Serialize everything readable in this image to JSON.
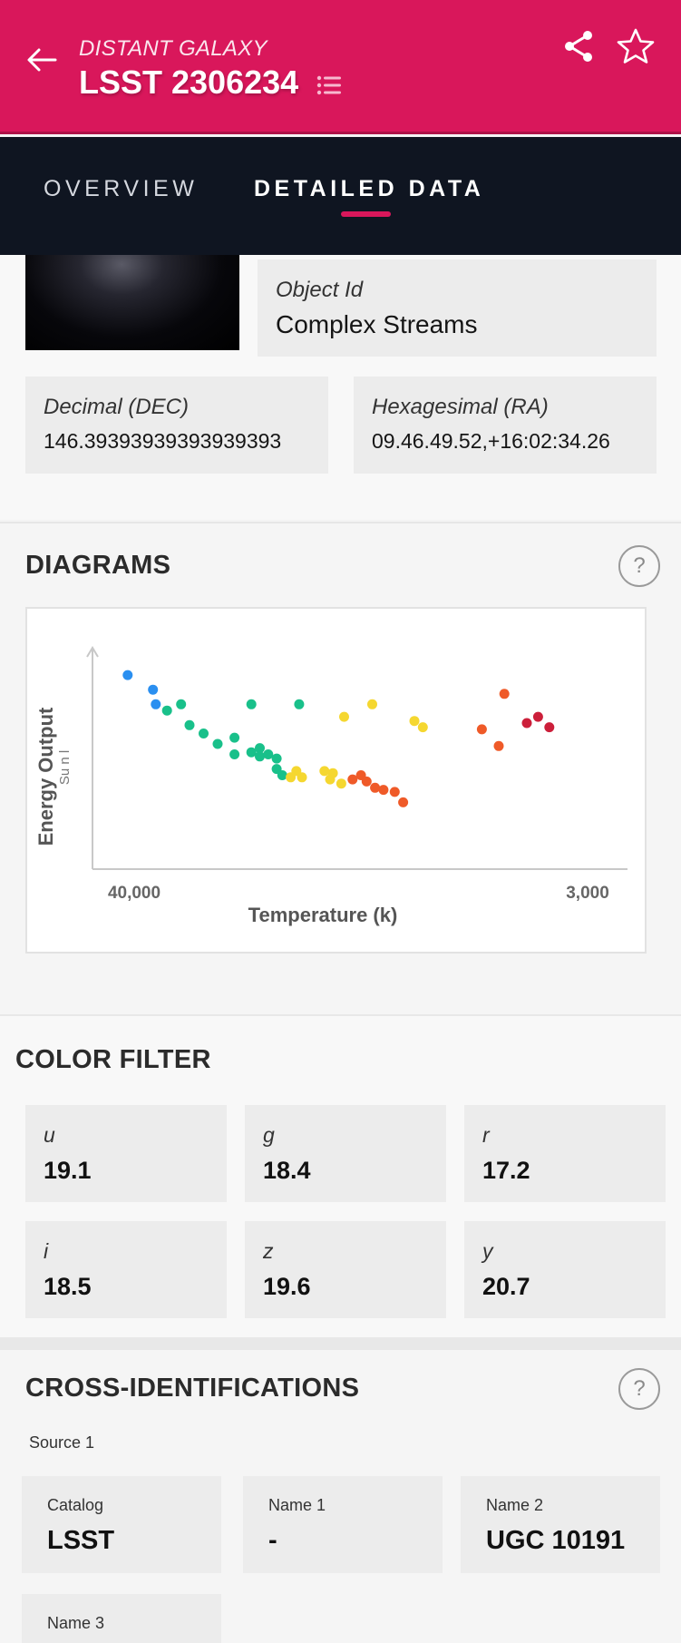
{
  "header": {
    "subtitle": "DISTANT GALAXY",
    "title": "LSST 2306234"
  },
  "tabs": [
    {
      "label": "OVERVIEW",
      "active": false
    },
    {
      "label": "DETAILED DATA",
      "active": true
    }
  ],
  "object": {
    "object_id_label": "Object Id",
    "object_id_value": "Complex Streams",
    "dec_label": "Decimal (DEC)",
    "dec_value": "146.39393939393939393",
    "ra_label": "Hexagesimal (RA)",
    "ra_value": "09.46.49.52,+16:02:34.26"
  },
  "diagrams": {
    "title": "DIAGRAMS",
    "help": "?"
  },
  "chart_data": {
    "type": "scatter",
    "xlabel": "Temperature (k)",
    "ylabel": "Energy Output",
    "ylabel_secondary": "Su n l",
    "x_tick_left": "40,000",
    "x_tick_right": "3,000",
    "xlim": [
      0,
      100
    ],
    "ylim": [
      0,
      100
    ],
    "points": [
      {
        "x": 4,
        "y": 93,
        "color": "#2a8ff0"
      },
      {
        "x": 8.5,
        "y": 86,
        "color": "#2a8ff0"
      },
      {
        "x": 9,
        "y": 79,
        "color": "#2a8ff0"
      },
      {
        "x": 11,
        "y": 76,
        "color": "#19c08a"
      },
      {
        "x": 13.5,
        "y": 79,
        "color": "#19c08a"
      },
      {
        "x": 15,
        "y": 69,
        "color": "#19c08a"
      },
      {
        "x": 17.5,
        "y": 65,
        "color": "#19c08a"
      },
      {
        "x": 20,
        "y": 60,
        "color": "#19c08a"
      },
      {
        "x": 23,
        "y": 63,
        "color": "#19c08a"
      },
      {
        "x": 23,
        "y": 55,
        "color": "#19c08a"
      },
      {
        "x": 26,
        "y": 56,
        "color": "#19c08a"
      },
      {
        "x": 27.5,
        "y": 54,
        "color": "#19c08a"
      },
      {
        "x": 27.5,
        "y": 58,
        "color": "#19c08a"
      },
      {
        "x": 29,
        "y": 55,
        "color": "#19c08a"
      },
      {
        "x": 30.5,
        "y": 53,
        "color": "#19c08a"
      },
      {
        "x": 30.5,
        "y": 48,
        "color": "#19c08a"
      },
      {
        "x": 31.5,
        "y": 45,
        "color": "#19c08a"
      },
      {
        "x": 26,
        "y": 79,
        "color": "#19c08a"
      },
      {
        "x": 34.5,
        "y": 79,
        "color": "#19c08a"
      },
      {
        "x": 33,
        "y": 44,
        "color": "#f5d730"
      },
      {
        "x": 34,
        "y": 47,
        "color": "#f5d730"
      },
      {
        "x": 35,
        "y": 44,
        "color": "#f5d730"
      },
      {
        "x": 39,
        "y": 47,
        "color": "#f5d730"
      },
      {
        "x": 40,
        "y": 43,
        "color": "#f5d730"
      },
      {
        "x": 40.5,
        "y": 46,
        "color": "#f5d730"
      },
      {
        "x": 42,
        "y": 41,
        "color": "#f5d730"
      },
      {
        "x": 42.5,
        "y": 73,
        "color": "#f5d730"
      },
      {
        "x": 47.5,
        "y": 79,
        "color": "#f5d730"
      },
      {
        "x": 55,
        "y": 71,
        "color": "#f5d730"
      },
      {
        "x": 56.5,
        "y": 68,
        "color": "#f5d730"
      },
      {
        "x": 44,
        "y": 43,
        "color": "#ef5a28"
      },
      {
        "x": 45.5,
        "y": 45,
        "color": "#ef5a28"
      },
      {
        "x": 46.5,
        "y": 42,
        "color": "#ef5a28"
      },
      {
        "x": 48,
        "y": 39,
        "color": "#ef5a28"
      },
      {
        "x": 49.5,
        "y": 38,
        "color": "#ef5a28"
      },
      {
        "x": 51.5,
        "y": 37,
        "color": "#ef5a28"
      },
      {
        "x": 53,
        "y": 32,
        "color": "#ef5a28"
      },
      {
        "x": 67,
        "y": 67,
        "color": "#ef5a28"
      },
      {
        "x": 70,
        "y": 59,
        "color": "#ef5a28"
      },
      {
        "x": 71,
        "y": 84,
        "color": "#ef5a28"
      },
      {
        "x": 75,
        "y": 70,
        "color": "#cc1f3a"
      },
      {
        "x": 77,
        "y": 73,
        "color": "#cc1f3a"
      },
      {
        "x": 79,
        "y": 68,
        "color": "#cc1f3a"
      }
    ],
    "grid": false
  },
  "color_filter": {
    "title": "COLOR FILTER",
    "items": [
      {
        "label": "u",
        "value": "19.1"
      },
      {
        "label": "g",
        "value": "18.4"
      },
      {
        "label": "r",
        "value": "17.2"
      },
      {
        "label": "i",
        "value": "18.5"
      },
      {
        "label": "z",
        "value": "19.6"
      },
      {
        "label": "y",
        "value": "20.7"
      }
    ]
  },
  "cross_ids": {
    "title": "CROSS-IDENTIFICATIONS",
    "help": "?",
    "source_label": "Source 1",
    "items": [
      {
        "label": "Catalog",
        "value": "LSST"
      },
      {
        "label": "Name 1",
        "value": "-"
      },
      {
        "label": "Name 2",
        "value": "UGC 10191"
      },
      {
        "label": "Name 3",
        "value": ""
      }
    ]
  },
  "colors": {
    "accent": "#d9175b",
    "tabbar": "#0f1521"
  }
}
